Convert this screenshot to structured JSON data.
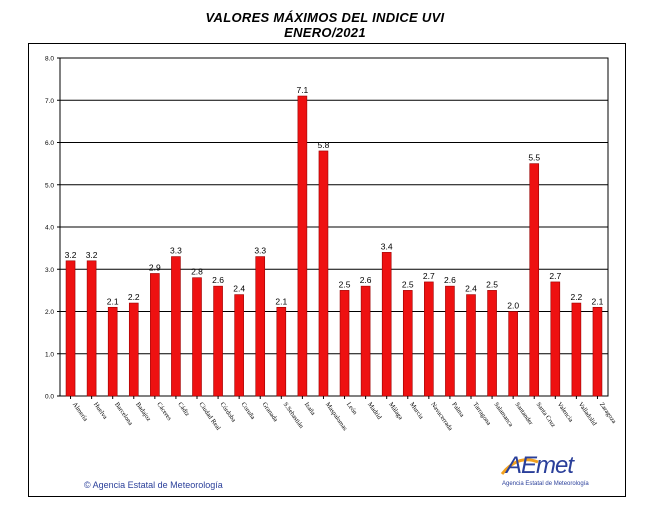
{
  "header": {
    "title": "VALORES MÁXIMOS DEL INDICE UVI",
    "subtitle": "ENERO/2021"
  },
  "footer": {
    "copyright": "© Agencia Estatal de Meteorología",
    "logo_word": "AEmet",
    "logo_caption": "Agencia Estatal de Meteorología"
  },
  "colors": {
    "bar": "#ee1111",
    "bar_edge": "#9a0000",
    "grid": "#000000",
    "brand": "#2a3f9a",
    "logo_accent": "#f2a11f"
  },
  "chart_data": {
    "type": "bar",
    "title": "VALORES MÁXIMOS DEL INDICE UVI",
    "subtitle": "ENERO/2021",
    "categories": [
      "Almería",
      "Huelva",
      "Barcelona",
      "Badajoz",
      "Cáceres",
      "Cádiz",
      "Ciudad Real",
      "Córdoba",
      "Coruña",
      "Granada",
      "S.Sebastián",
      "Izaña",
      "Maspalomas",
      "León",
      "Madrid",
      "Málaga",
      "Murcia",
      "Navacerrada",
      "Palma",
      "Tarragona",
      "Salamanca",
      "Santander",
      "Santa Cruz",
      "Valencia",
      "Valladolid",
      "Zaragoza"
    ],
    "values": [
      3.2,
      3.2,
      2.1,
      2.2,
      2.9,
      3.3,
      2.8,
      2.6,
      2.4,
      3.3,
      2.1,
      7.1,
      5.8,
      2.5,
      2.6,
      3.4,
      2.5,
      2.7,
      2.6,
      2.4,
      2.5,
      2.0,
      5.5,
      2.7,
      2.2,
      2.1
    ],
    "value_labels": [
      "3.2",
      "3.2",
      "2.1",
      "2.2",
      "2.9",
      "3.3",
      "2.8",
      "2.6",
      "2.4",
      "3.3",
      "2.1",
      "7.1",
      "5.8",
      "2.5",
      "2.6",
      "3.4",
      "2.5",
      "2.7",
      "2.6",
      "2.4",
      "2.5",
      "2.0",
      "5.5",
      "2.7",
      "2.2",
      "2.1"
    ],
    "y_ticks": [
      "0.0",
      "1.0",
      "2.0",
      "3.0",
      "4.0",
      "5.0",
      "6.0",
      "7.0",
      "8.0"
    ],
    "ylim": [
      0,
      8
    ],
    "grid": true,
    "xlabel": "",
    "ylabel": ""
  }
}
